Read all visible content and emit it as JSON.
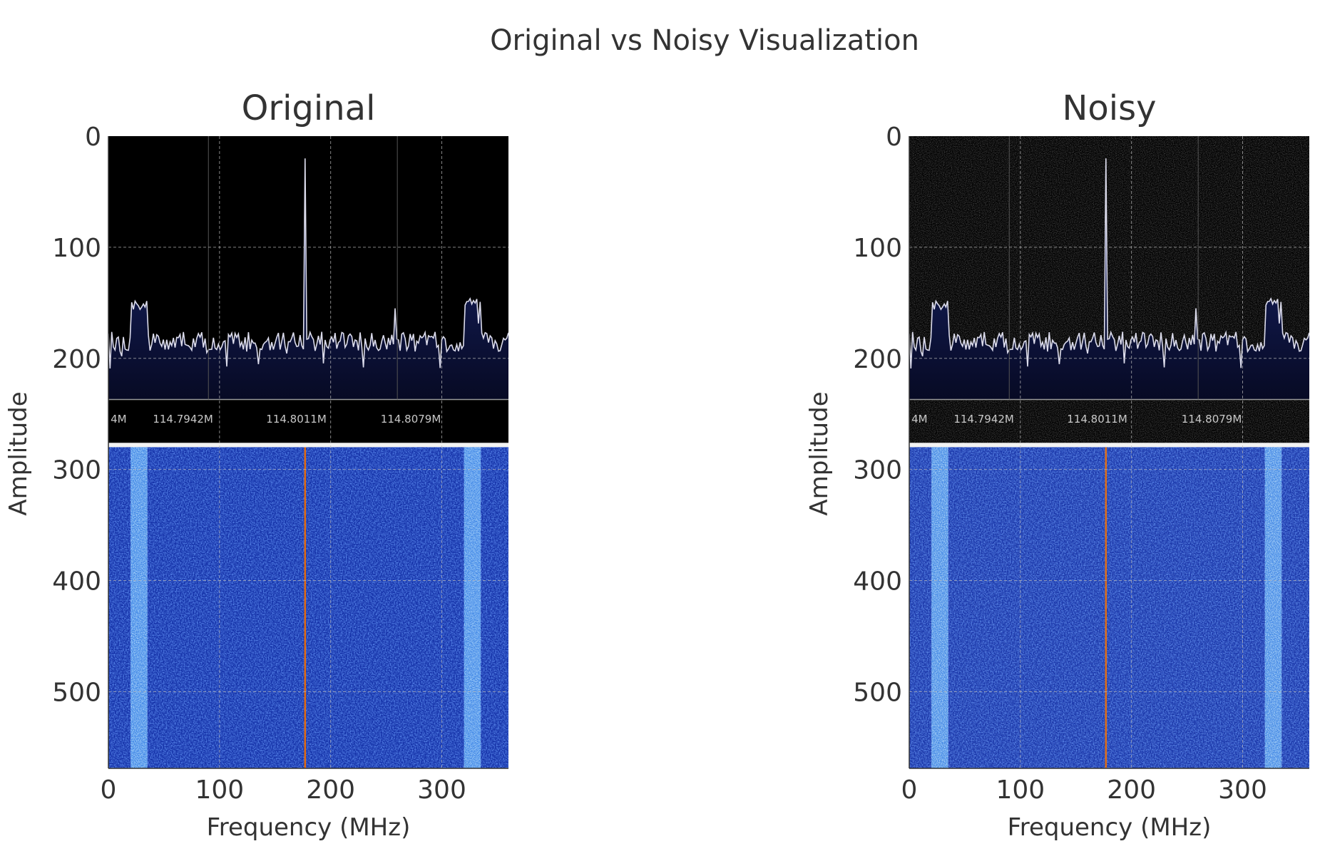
{
  "figure_title": "Original vs Noisy Visualization",
  "chart_data": [
    {
      "type": "heatmap",
      "title": "Original",
      "xlabel": "Frequency (MHz)",
      "ylabel": "Amplitude",
      "xlim": [
        0,
        360
      ],
      "ylim": [
        569,
        0
      ],
      "xticks": [
        "0",
        "100",
        "200",
        "300"
      ],
      "xtick_values": [
        0,
        100,
        200,
        300
      ],
      "yticks": [
        "0",
        "100",
        "200",
        "300",
        "400",
        "500"
      ],
      "ytick_values": [
        0,
        100,
        200,
        300,
        400,
        500
      ],
      "grid": true,
      "noise": false,
      "embedded_frequency_labels": [
        "4M",
        "114.7942M",
        "114.8011M",
        "114.8079M"
      ],
      "spectrum": {
        "baseline": 185,
        "bands": [
          [
            20,
            35,
            152
          ],
          [
            320,
            335,
            150
          ]
        ],
        "spike_x": 177,
        "spike_top": 20,
        "minor_spike_x": 258,
        "minor_spike_top": 155
      },
      "waterfall": {
        "bright_bands": [
          [
            20,
            35
          ],
          [
            320,
            335
          ]
        ],
        "carrier_x": 177,
        "carrier_color": "#e06a10"
      }
    },
    {
      "type": "heatmap",
      "title": "Noisy",
      "xlabel": "Frequency (MHz)",
      "ylabel": "Amplitude",
      "xlim": [
        0,
        360
      ],
      "ylim": [
        569,
        0
      ],
      "xticks": [
        "0",
        "100",
        "200",
        "300"
      ],
      "xtick_values": [
        0,
        100,
        200,
        300
      ],
      "yticks": [
        "0",
        "100",
        "200",
        "300",
        "400",
        "500"
      ],
      "ytick_values": [
        0,
        100,
        200,
        300,
        400,
        500
      ],
      "grid": true,
      "noise": true,
      "embedded_frequency_labels": [
        "4M",
        "114.7942M",
        "114.8011M",
        "114.8079M"
      ],
      "spectrum": {
        "baseline": 185,
        "bands": [
          [
            20,
            35,
            152
          ],
          [
            320,
            335,
            150
          ]
        ],
        "spike_x": 177,
        "spike_top": 20,
        "minor_spike_x": 258,
        "minor_spike_top": 155
      },
      "waterfall": {
        "bright_bands": [
          [
            20,
            35
          ],
          [
            320,
            335
          ]
        ],
        "carrier_x": 177,
        "carrier_color": "#e06a10"
      }
    }
  ]
}
